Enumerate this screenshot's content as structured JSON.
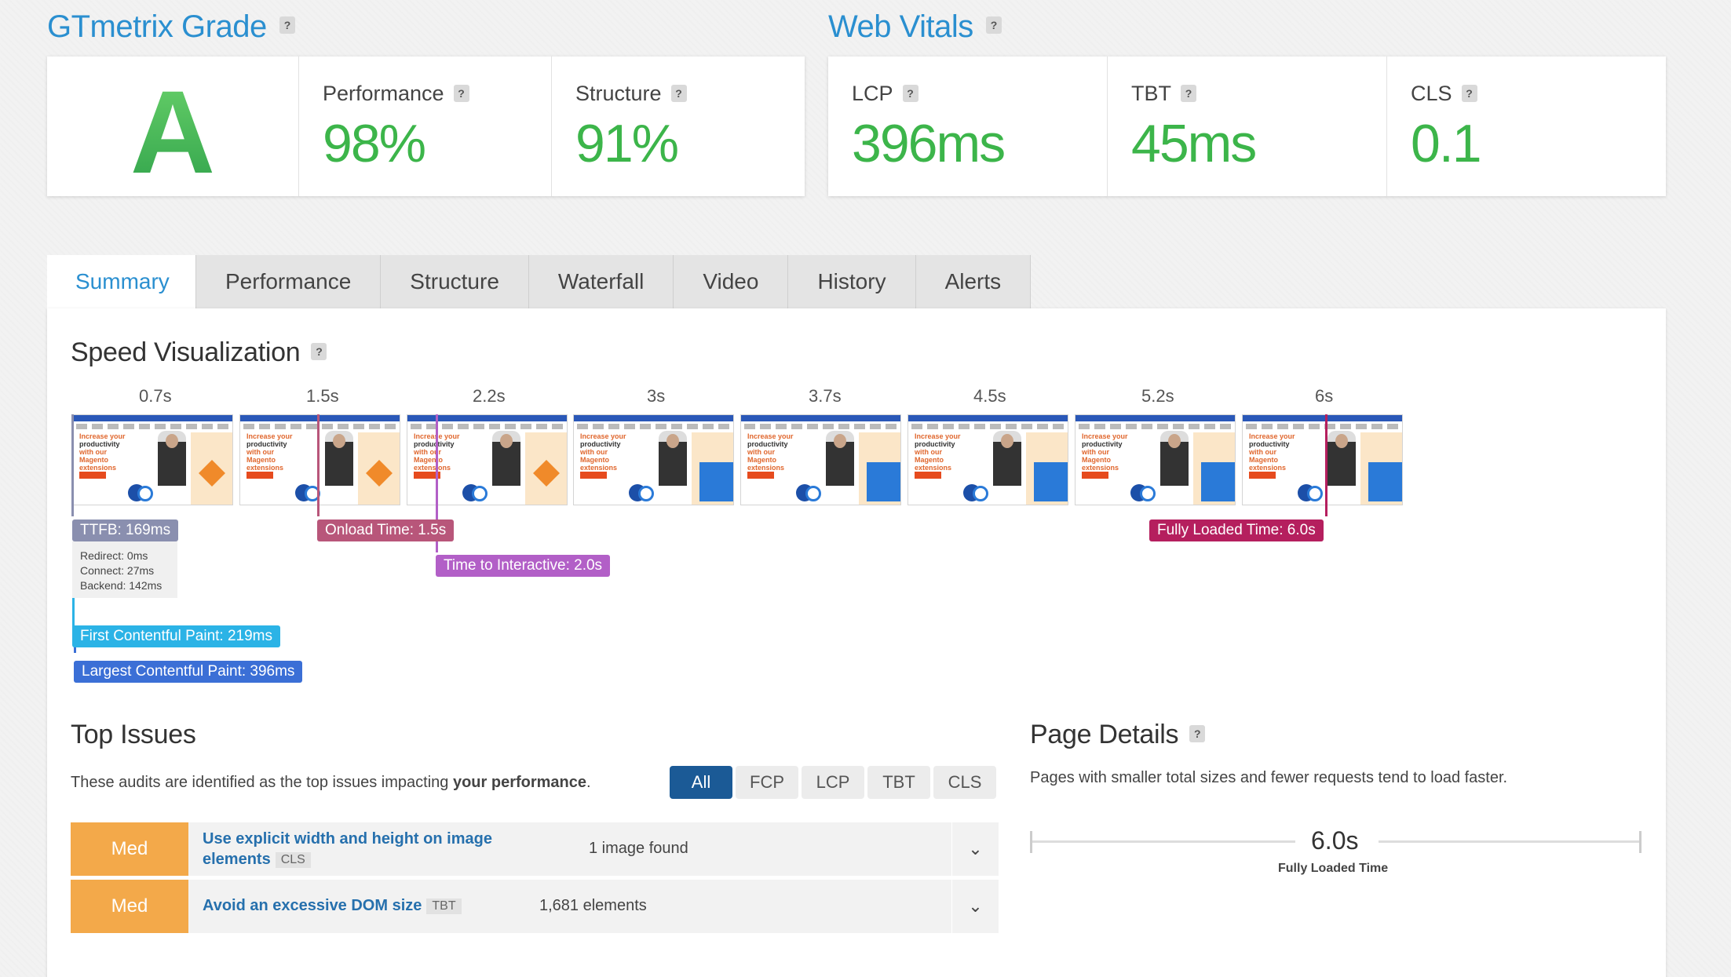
{
  "grade": {
    "title": "GTmetrix Grade",
    "help": "?",
    "letter": "A",
    "performance": {
      "label": "Performance",
      "value": "98%"
    },
    "structure": {
      "label": "Structure",
      "value": "91%"
    }
  },
  "vitals": {
    "title": "Web Vitals",
    "help": "?",
    "lcp": {
      "label": "LCP",
      "value": "396ms"
    },
    "tbt": {
      "label": "TBT",
      "value": "45ms"
    },
    "cls": {
      "label": "CLS",
      "value": "0.1"
    }
  },
  "tabs": [
    "Summary",
    "Performance",
    "Structure",
    "Waterfall",
    "Video",
    "History",
    "Alerts"
  ],
  "speed": {
    "title": "Speed Visualization",
    "help": "?",
    "times": [
      "0.7s",
      "1.5s",
      "2.2s",
      "3s",
      "3.7s",
      "4.5s",
      "5.2s",
      "6s"
    ],
    "frame_text": {
      "line1": "Increase your",
      "line2": "productivity",
      "line3": "with our Magento extensions"
    },
    "markers": {
      "ttfb": "TTFB: 169ms",
      "redirect": "Redirect: 0ms",
      "connect": "Connect: 27ms",
      "backend": "Backend: 142ms",
      "onload": "Onload Time: 1.5s",
      "tti": "Time to Interactive: 2.0s",
      "fully_loaded": "Fully Loaded Time: 6.0s",
      "fcp": "First Contentful Paint: 219ms",
      "lcp": "Largest Contentful Paint: 396ms"
    },
    "colors": {
      "ttfb": "#8a8faf",
      "onload": "#b8567a",
      "tti": "#b25fc7",
      "fully": "#b51f5e",
      "fcp": "#2bb3e6",
      "lcp": "#3b6fd6"
    }
  },
  "top_issues": {
    "title": "Top Issues",
    "desc_prefix": "These audits are identified as the top issues impacting ",
    "desc_bold": "your performance",
    "desc_suffix": ".",
    "filters": [
      "All",
      "FCP",
      "LCP",
      "TBT",
      "CLS"
    ],
    "items": [
      {
        "severity": "Med",
        "title_line1": "Use explicit width and height on image",
        "title_line2": "elements",
        "badge": "CLS",
        "found": "1 image found"
      },
      {
        "severity": "Med",
        "title_line1": "Avoid an excessive DOM size",
        "badge": "TBT",
        "found": "1,681 elements"
      }
    ]
  },
  "page_details": {
    "title": "Page Details",
    "help": "?",
    "desc": "Pages with smaller total sizes and fewer requests tend to load faster.",
    "fully_loaded_value": "6.0s",
    "fully_loaded_label": "Fully Loaded Time"
  }
}
